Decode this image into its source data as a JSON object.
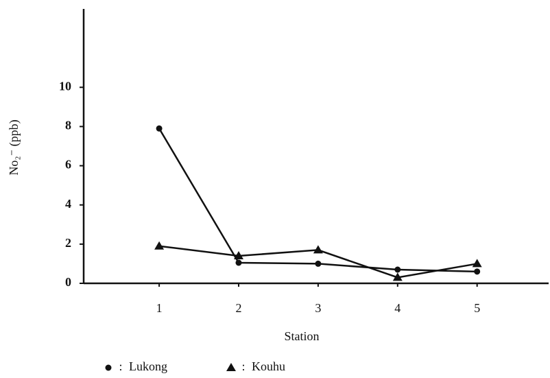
{
  "chart_data": {
    "type": "line",
    "x_label": "Station",
    "y_label": "No₂⁻ (ppb)",
    "x": [
      1,
      2,
      3,
      4,
      5
    ],
    "xlim": [
      0.05,
      5.9
    ],
    "xticks": [
      1,
      2,
      3,
      4,
      5
    ],
    "ylim": [
      0,
      14
    ],
    "yticks": [
      0,
      2,
      4,
      6,
      8,
      10
    ],
    "legend_separator": ":",
    "series": [
      {
        "name": "Lukong",
        "color": "#111111",
        "marker": "circle",
        "values": [
          7.9,
          1.05,
          1.0,
          0.7,
          0.6
        ]
      },
      {
        "name": "Kouhu",
        "color": "#111111",
        "marker": "triangle",
        "values": [
          1.9,
          1.4,
          1.7,
          0.3,
          1.0
        ]
      }
    ]
  }
}
